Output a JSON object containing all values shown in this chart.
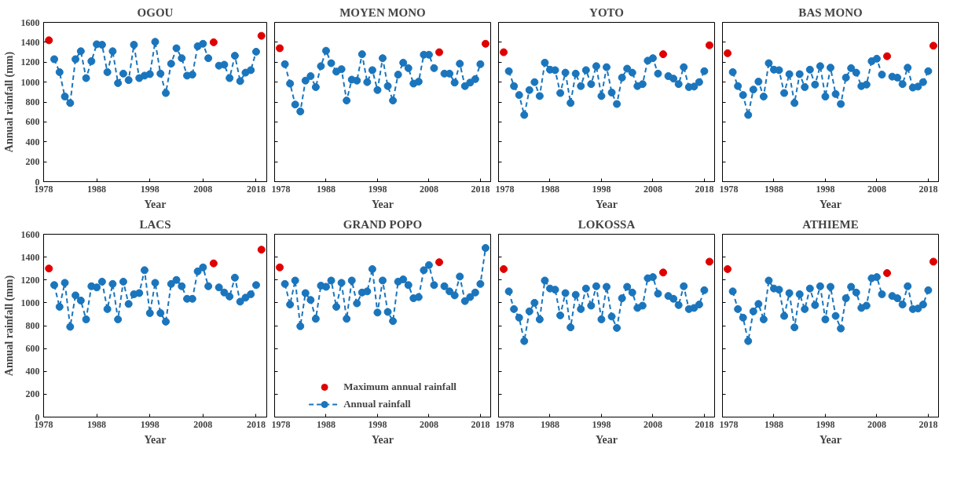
{
  "chart_data": [
    {
      "type": "line",
      "title": "OGOU",
      "xlabel": "Year",
      "ylabel": "Annual rainfall (mm)",
      "xlim": [
        1978,
        2020
      ],
      "ylim": [
        0,
        1600
      ],
      "xticks": [
        1978,
        1988,
        1998,
        2008,
        2018
      ],
      "yticks": [
        0,
        200,
        400,
        600,
        800,
        1000,
        1200,
        1400,
        1600
      ],
      "grid": false,
      "legend": false,
      "marker": "circle",
      "line_style": "dashed",
      "x": [
        1979,
        1980,
        1981,
        1982,
        1983,
        1984,
        1985,
        1986,
        1987,
        1988,
        1989,
        1990,
        1991,
        1992,
        1993,
        1994,
        1995,
        1996,
        1997,
        1998,
        1999,
        2000,
        2001,
        2002,
        2003,
        2004,
        2005,
        2006,
        2007,
        2008,
        2009,
        2010,
        2011,
        2012,
        2013,
        2014,
        2015,
        2016,
        2017,
        2018,
        2019
      ],
      "series": [
        {
          "type": "scatter",
          "color": "#e00000",
          "values": [
            1420,
            null,
            null,
            null,
            null,
            null,
            null,
            null,
            null,
            null,
            null,
            null,
            null,
            null,
            null,
            null,
            null,
            null,
            null,
            null,
            null,
            null,
            null,
            null,
            null,
            null,
            null,
            null,
            null,
            null,
            null,
            1400,
            null,
            null,
            null,
            null,
            null,
            null,
            null,
            null,
            1465
          ]
        },
        {
          "color": "#1a75bc",
          "values": [
            null,
            1230,
            1100,
            855,
            790,
            1230,
            1310,
            1040,
            1210,
            1380,
            1375,
            1100,
            1310,
            990,
            1085,
            1020,
            1375,
            1040,
            1065,
            1080,
            1405,
            1085,
            890,
            1185,
            1340,
            1240,
            1065,
            1075,
            1360,
            1385,
            1240,
            null,
            1165,
            1175,
            1040,
            1265,
            1010,
            1095,
            1120,
            1305,
            null
          ]
        }
      ]
    },
    {
      "type": "line",
      "title": "MOYEN MONO",
      "xlabel": "Year",
      "xlim": [
        1978,
        2020
      ],
      "ylim": [
        0,
        1600
      ],
      "xticks": [
        1978,
        1988,
        1998,
        2008,
        2018
      ],
      "yticks": [
        0,
        200,
        400,
        600,
        800,
        1000,
        1200,
        1400,
        1600
      ],
      "tick_labels": "x",
      "grid": false,
      "legend": false,
      "marker": "circle",
      "line_style": "dashed",
      "x": [
        1979,
        1980,
        1981,
        1982,
        1983,
        1984,
        1985,
        1986,
        1987,
        1988,
        1989,
        1990,
        1991,
        1992,
        1993,
        1994,
        1995,
        1996,
        1997,
        1998,
        1999,
        2000,
        2001,
        2002,
        2003,
        2004,
        2005,
        2006,
        2007,
        2008,
        2009,
        2010,
        2011,
        2012,
        2013,
        2014,
        2015,
        2016,
        2017,
        2018,
        2019
      ],
      "series": [
        {
          "type": "scatter",
          "color": "#e00000",
          "values": [
            1340,
            null,
            null,
            null,
            null,
            null,
            null,
            null,
            null,
            null,
            null,
            null,
            null,
            null,
            null,
            null,
            null,
            null,
            null,
            null,
            null,
            null,
            null,
            null,
            null,
            null,
            null,
            null,
            null,
            null,
            null,
            1300,
            null,
            null,
            null,
            null,
            null,
            null,
            null,
            null,
            1385
          ]
        },
        {
          "color": "#1a75bc",
          "values": [
            null,
            1180,
            985,
            775,
            705,
            1015,
            1060,
            950,
            1160,
            1315,
            1190,
            1105,
            1130,
            815,
            1025,
            1015,
            1280,
            1000,
            1120,
            920,
            1240,
            960,
            815,
            1075,
            1195,
            1140,
            985,
            1005,
            1275,
            1275,
            1140,
            null,
            1085,
            1085,
            995,
            1185,
            960,
            995,
            1030,
            1180,
            null
          ]
        }
      ]
    },
    {
      "type": "line",
      "title": "YOTO",
      "xlabel": "Year",
      "xlim": [
        1978,
        2020
      ],
      "ylim": [
        0,
        1600
      ],
      "xticks": [
        1978,
        1988,
        1998,
        2008,
        2018
      ],
      "yticks": [
        0,
        200,
        400,
        600,
        800,
        1000,
        1200,
        1400,
        1600
      ],
      "tick_labels": "x",
      "grid": false,
      "legend": false,
      "marker": "circle",
      "line_style": "dashed",
      "x": [
        1979,
        1980,
        1981,
        1982,
        1983,
        1984,
        1985,
        1986,
        1987,
        1988,
        1989,
        1990,
        1991,
        1992,
        1993,
        1994,
        1995,
        1996,
        1997,
        1998,
        1999,
        2000,
        2001,
        2002,
        2003,
        2004,
        2005,
        2006,
        2007,
        2008,
        2009,
        2010,
        2011,
        2012,
        2013,
        2014,
        2015,
        2016,
        2017,
        2018,
        2019
      ],
      "series": [
        {
          "type": "scatter",
          "color": "#e00000",
          "values": [
            1300,
            null,
            null,
            null,
            null,
            null,
            null,
            null,
            null,
            null,
            null,
            null,
            null,
            null,
            null,
            null,
            null,
            null,
            null,
            null,
            null,
            null,
            null,
            null,
            null,
            null,
            null,
            null,
            null,
            null,
            null,
            1280,
            null,
            null,
            null,
            null,
            null,
            null,
            null,
            null,
            1370
          ]
        },
        {
          "color": "#1a75bc",
          "values": [
            null,
            1110,
            960,
            870,
            670,
            920,
            1000,
            860,
            1195,
            1125,
            1120,
            890,
            1095,
            790,
            1085,
            960,
            1120,
            980,
            1160,
            860,
            1150,
            895,
            780,
            1045,
            1135,
            1095,
            960,
            980,
            1215,
            1240,
            1085,
            null,
            1060,
            1035,
            980,
            1150,
            950,
            955,
            1000,
            1110,
            null
          ]
        }
      ]
    },
    {
      "type": "line",
      "title": "BAS MONO",
      "xlabel": "Year",
      "xlim": [
        1978,
        2020
      ],
      "ylim": [
        0,
        1600
      ],
      "xticks": [
        1978,
        1988,
        1998,
        2008,
        2018
      ],
      "yticks": [
        0,
        200,
        400,
        600,
        800,
        1000,
        1200,
        1400,
        1600
      ],
      "tick_labels": "x",
      "grid": false,
      "legend": false,
      "marker": "circle",
      "line_style": "dashed",
      "x": [
        1979,
        1980,
        1981,
        1982,
        1983,
        1984,
        1985,
        1986,
        1987,
        1988,
        1989,
        1990,
        1991,
        1992,
        1993,
        1994,
        1995,
        1996,
        1997,
        1998,
        1999,
        2000,
        2001,
        2002,
        2003,
        2004,
        2005,
        2006,
        2007,
        2008,
        2009,
        2010,
        2011,
        2012,
        2013,
        2014,
        2015,
        2016,
        2017,
        2018,
        2019
      ],
      "series": [
        {
          "type": "scatter",
          "color": "#e00000",
          "values": [
            1290,
            null,
            null,
            null,
            null,
            null,
            null,
            null,
            null,
            null,
            null,
            null,
            null,
            null,
            null,
            null,
            null,
            null,
            null,
            null,
            null,
            null,
            null,
            null,
            null,
            null,
            null,
            null,
            null,
            null,
            null,
            1260,
            null,
            null,
            null,
            null,
            null,
            null,
            null,
            null,
            1365
          ]
        },
        {
          "color": "#1a75bc",
          "values": [
            null,
            1100,
            960,
            870,
            670,
            925,
            1005,
            855,
            1190,
            1125,
            1120,
            890,
            1080,
            790,
            1080,
            950,
            1125,
            975,
            1160,
            855,
            1145,
            880,
            780,
            1045,
            1140,
            1095,
            960,
            975,
            1210,
            1235,
            1075,
            null,
            1055,
            1045,
            980,
            1145,
            945,
            955,
            1000,
            1110,
            null
          ]
        }
      ]
    },
    {
      "type": "line",
      "title": "LACS",
      "xlabel": "Year",
      "ylabel": "Annual rainfall (mm)",
      "xlim": [
        1978,
        2020
      ],
      "ylim": [
        0,
        1600
      ],
      "xticks": [
        1978,
        1988,
        1998,
        2008,
        2018
      ],
      "yticks": [
        0,
        200,
        400,
        600,
        800,
        1000,
        1200,
        1400,
        1600
      ],
      "grid": false,
      "legend": false,
      "marker": "circle",
      "line_style": "dashed",
      "x": [
        1979,
        1980,
        1981,
        1982,
        1983,
        1984,
        1985,
        1986,
        1987,
        1988,
        1989,
        1990,
        1991,
        1992,
        1993,
        1994,
        1995,
        1996,
        1997,
        1998,
        1999,
        2000,
        2001,
        2002,
        2003,
        2004,
        2005,
        2006,
        2007,
        2008,
        2009,
        2010,
        2011,
        2012,
        2013,
        2014,
        2015,
        2016,
        2017,
        2018,
        2019
      ],
      "series": [
        {
          "type": "scatter",
          "color": "#e00000",
          "values": [
            1300,
            null,
            null,
            null,
            null,
            null,
            null,
            null,
            null,
            null,
            null,
            null,
            null,
            null,
            null,
            null,
            null,
            null,
            null,
            null,
            null,
            null,
            null,
            null,
            null,
            null,
            null,
            null,
            null,
            null,
            null,
            1345,
            null,
            null,
            null,
            null,
            null,
            null,
            null,
            null,
            1465
          ]
        },
        {
          "color": "#1a75bc",
          "values": [
            null,
            1155,
            965,
            1175,
            790,
            1065,
            1020,
            855,
            1145,
            1135,
            1185,
            945,
            1165,
            855,
            1185,
            990,
            1075,
            1085,
            1285,
            910,
            1175,
            910,
            835,
            1165,
            1200,
            1145,
            1035,
            1035,
            1275,
            1310,
            1145,
            null,
            1135,
            1090,
            1055,
            1220,
            1010,
            1045,
            1075,
            1155,
            null
          ]
        }
      ]
    },
    {
      "type": "line",
      "title": "GRAND POPO",
      "xlabel": "Year",
      "xlim": [
        1978,
        2020
      ],
      "ylim": [
        0,
        1600
      ],
      "xticks": [
        1978,
        1988,
        1998,
        2008,
        2018
      ],
      "yticks": [
        0,
        200,
        400,
        600,
        800,
        1000,
        1200,
        1400,
        1600
      ],
      "tick_labels": "x",
      "grid": false,
      "legend": "bottom",
      "marker": "circle",
      "line_style": "dashed",
      "x": [
        1979,
        1980,
        1981,
        1982,
        1983,
        1984,
        1985,
        1986,
        1987,
        1988,
        1989,
        1990,
        1991,
        1992,
        1993,
        1994,
        1995,
        1996,
        1997,
        1998,
        1999,
        2000,
        2001,
        2002,
        2003,
        2004,
        2005,
        2006,
        2007,
        2008,
        2009,
        2010,
        2011,
        2012,
        2013,
        2014,
        2015,
        2016,
        2017,
        2018,
        2019
      ],
      "series": [
        {
          "name": "Maximum annual rainfall",
          "type": "scatter",
          "color": "#e00000",
          "values": [
            1310,
            null,
            null,
            null,
            null,
            null,
            null,
            null,
            null,
            null,
            null,
            null,
            null,
            null,
            null,
            null,
            null,
            null,
            null,
            null,
            null,
            null,
            null,
            null,
            null,
            null,
            null,
            null,
            null,
            null,
            null,
            1355,
            null,
            null,
            null,
            null,
            null,
            null,
            null,
            null,
            null
          ]
        },
        {
          "name": "Annual rainfall",
          "color": "#1a75bc",
          "values": [
            null,
            1165,
            985,
            1195,
            795,
            1085,
            1025,
            860,
            1150,
            1140,
            1195,
            965,
            1175,
            860,
            1195,
            995,
            1090,
            1100,
            1295,
            915,
            1195,
            920,
            840,
            1185,
            1205,
            1155,
            1040,
            1050,
            1285,
            1330,
            1155,
            null,
            1145,
            1100,
            1065,
            1230,
            1015,
            1050,
            1090,
            1165,
            1480
          ]
        }
      ]
    },
    {
      "type": "line",
      "title": "LOKOSSA",
      "xlabel": "Year",
      "xlim": [
        1978,
        2020
      ],
      "ylim": [
        0,
        1600
      ],
      "xticks": [
        1978,
        1988,
        1998,
        2008,
        2018
      ],
      "yticks": [
        0,
        200,
        400,
        600,
        800,
        1000,
        1200,
        1400,
        1600
      ],
      "tick_labels": "x",
      "grid": false,
      "legend": false,
      "marker": "circle",
      "line_style": "dashed",
      "x": [
        1979,
        1980,
        1981,
        1982,
        1983,
        1984,
        1985,
        1986,
        1987,
        1988,
        1989,
        1990,
        1991,
        1992,
        1993,
        1994,
        1995,
        1996,
        1997,
        1998,
        1999,
        2000,
        2001,
        2002,
        2003,
        2004,
        2005,
        2006,
        2007,
        2008,
        2009,
        2010,
        2011,
        2012,
        2013,
        2014,
        2015,
        2016,
        2017,
        2018,
        2019
      ],
      "series": [
        {
          "type": "scatter",
          "color": "#e00000",
          "values": [
            1295,
            null,
            null,
            null,
            null,
            null,
            null,
            null,
            null,
            null,
            null,
            null,
            null,
            null,
            null,
            null,
            null,
            null,
            null,
            null,
            null,
            null,
            null,
            null,
            null,
            null,
            null,
            null,
            null,
            null,
            null,
            1265,
            null,
            null,
            null,
            null,
            null,
            null,
            null,
            null,
            1360
          ]
        },
        {
          "color": "#1a75bc",
          "values": [
            null,
            1100,
            945,
            870,
            665,
            925,
            1000,
            855,
            1195,
            1125,
            1115,
            890,
            1085,
            785,
            1070,
            945,
            1125,
            975,
            1145,
            855,
            1140,
            880,
            780,
            1040,
            1140,
            1090,
            955,
            975,
            1215,
            1225,
            1080,
            null,
            1060,
            1035,
            980,
            1145,
            945,
            955,
            985,
            1110,
            null
          ]
        }
      ]
    },
    {
      "type": "line",
      "title": "ATHIEME",
      "xlabel": "Year",
      "xlim": [
        1978,
        2020
      ],
      "ylim": [
        0,
        1600
      ],
      "xticks": [
        1978,
        1988,
        1998,
        2008,
        2018
      ],
      "yticks": [
        0,
        200,
        400,
        600,
        800,
        1000,
        1200,
        1400,
        1600
      ],
      "tick_labels": "x",
      "grid": false,
      "legend": false,
      "marker": "circle",
      "line_style": "dashed",
      "x": [
        1979,
        1980,
        1981,
        1982,
        1983,
        1984,
        1985,
        1986,
        1987,
        1988,
        1989,
        1990,
        1991,
        1992,
        1993,
        1994,
        1995,
        1996,
        1997,
        1998,
        1999,
        2000,
        2001,
        2002,
        2003,
        2004,
        2005,
        2006,
        2007,
        2008,
        2009,
        2010,
        2011,
        2012,
        2013,
        2014,
        2015,
        2016,
        2017,
        2018,
        2019
      ],
      "series": [
        {
          "type": "scatter",
          "color": "#e00000",
          "values": [
            1295,
            null,
            null,
            null,
            null,
            null,
            null,
            null,
            null,
            null,
            null,
            null,
            null,
            null,
            null,
            null,
            null,
            null,
            null,
            null,
            null,
            null,
            null,
            null,
            null,
            null,
            null,
            null,
            null,
            null,
            null,
            1260,
            null,
            null,
            null,
            null,
            null,
            null,
            null,
            null,
            1360
          ]
        },
        {
          "color": "#1a75bc",
          "values": [
            null,
            1100,
            945,
            870,
            665,
            925,
            990,
            855,
            1195,
            1125,
            1115,
            885,
            1085,
            785,
            1075,
            945,
            1125,
            980,
            1145,
            855,
            1140,
            885,
            775,
            1040,
            1140,
            1090,
            955,
            975,
            1215,
            1225,
            1075,
            null,
            1060,
            1040,
            985,
            1145,
            945,
            950,
            985,
            1110,
            null
          ]
        }
      ]
    }
  ]
}
